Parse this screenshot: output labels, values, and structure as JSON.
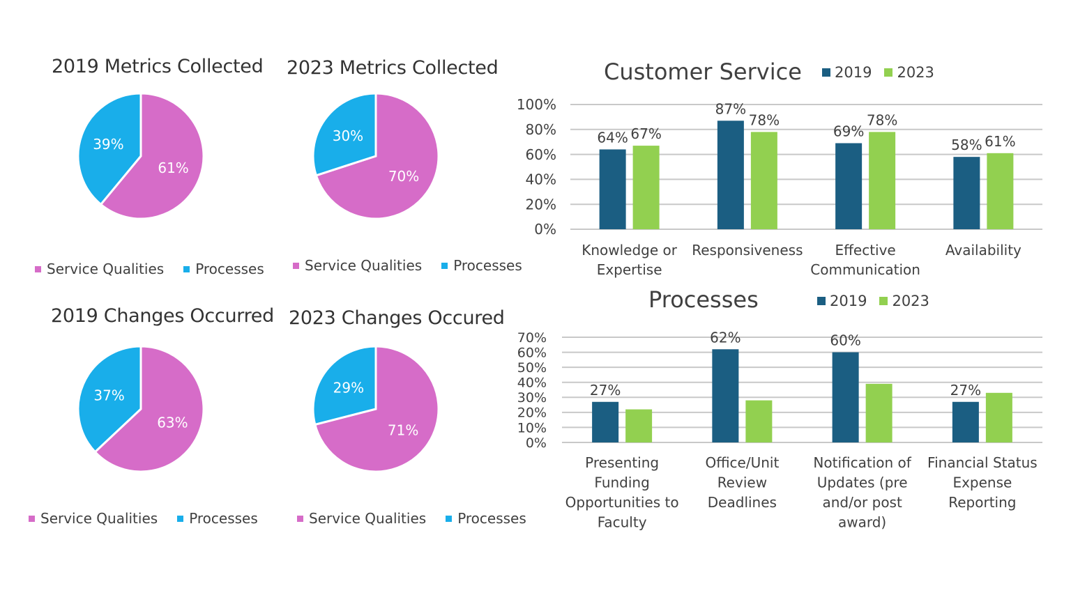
{
  "colors": {
    "service_qualities": "#D66CC8",
    "processes": "#19AEEA",
    "year_2019": "#1B5E82",
    "year_2023": "#92D050",
    "gridline": "#C8C8C8",
    "text": "#404040"
  },
  "chart_data": [
    {
      "id": "pie-2019-metrics",
      "type": "pie",
      "title": "2019 Metrics Collected",
      "slices": [
        {
          "label": "Service Qualities",
          "value": 61,
          "display": "61%"
        },
        {
          "label": "Processes",
          "value": 39,
          "display": "39%"
        }
      ],
      "legend": [
        "Service Qualities",
        "Processes"
      ],
      "legend_position": "bottom"
    },
    {
      "id": "pie-2023-metrics",
      "type": "pie",
      "title": "2023 Metrics Collected",
      "slices": [
        {
          "label": "Service Qualities",
          "value": 70,
          "display": "70%"
        },
        {
          "label": "Processes",
          "value": 30,
          "display": "30%"
        }
      ],
      "legend": [
        "Service Qualities",
        "Processes"
      ],
      "legend_position": "bottom"
    },
    {
      "id": "pie-2019-changes",
      "type": "pie",
      "title": "2019 Changes Occurred",
      "slices": [
        {
          "label": "Service Qualities",
          "value": 63,
          "display": "63%"
        },
        {
          "label": "Processes",
          "value": 37,
          "display": "37%"
        }
      ],
      "legend": [
        "Service Qualities",
        "Processes"
      ],
      "legend_position": "bottom"
    },
    {
      "id": "pie-2023-changes",
      "type": "pie",
      "title": "2023 Changes Occured",
      "slices": [
        {
          "label": "Service Qualities",
          "value": 71,
          "display": "71%"
        },
        {
          "label": "Processes",
          "value": 29,
          "display": "29%"
        }
      ],
      "legend": [
        "Service Qualities",
        "Processes"
      ],
      "legend_position": "bottom"
    },
    {
      "id": "bar-customer-service",
      "type": "bar",
      "title": "Customer Service",
      "categories": [
        [
          "Knowledge or",
          "Expertise"
        ],
        [
          "Responsiveness"
        ],
        [
          "Effective",
          "Communication"
        ],
        [
          "Availability"
        ]
      ],
      "series": [
        {
          "name": "2019",
          "values": [
            64,
            87,
            69,
            58
          ],
          "labels": [
            "64%",
            "87%",
            "69%",
            "58%"
          ]
        },
        {
          "name": "2023",
          "values": [
            67,
            78,
            78,
            61
          ],
          "labels": [
            "67%",
            "78%",
            "78%",
            "61%"
          ]
        }
      ],
      "yticks": [
        "0%",
        "20%",
        "40%",
        "60%",
        "80%",
        "100%"
      ],
      "ylim": [
        0,
        100
      ],
      "ystep": 20,
      "grid": true,
      "legend_position": "top-right"
    },
    {
      "id": "bar-processes",
      "type": "bar",
      "title": "Processes",
      "categories": [
        [
          "Presenting",
          "Funding",
          "Opportunities to",
          "Faculty"
        ],
        [
          "Office/Unit",
          "Review",
          "Deadlines"
        ],
        [
          "Notification of",
          "Updates (pre",
          "and/or post",
          "award)"
        ],
        [
          "Financial Status",
          "Expense",
          "Reporting"
        ]
      ],
      "series": [
        {
          "name": "2019",
          "values": [
            27,
            62,
            60,
            27
          ],
          "labels": [
            "27%",
            "62%",
            "60%",
            "27%"
          ]
        },
        {
          "name": "2023",
          "values": [
            22,
            28,
            39,
            33
          ],
          "labels": [
            "",
            "",
            "",
            ""
          ]
        }
      ],
      "yticks": [
        "0%",
        "10%",
        "20%",
        "30%",
        "40%",
        "50%",
        "60%",
        "70%"
      ],
      "ylim": [
        0,
        70
      ],
      "ystep": 10,
      "grid": true,
      "legend_position": "top-right"
    }
  ]
}
